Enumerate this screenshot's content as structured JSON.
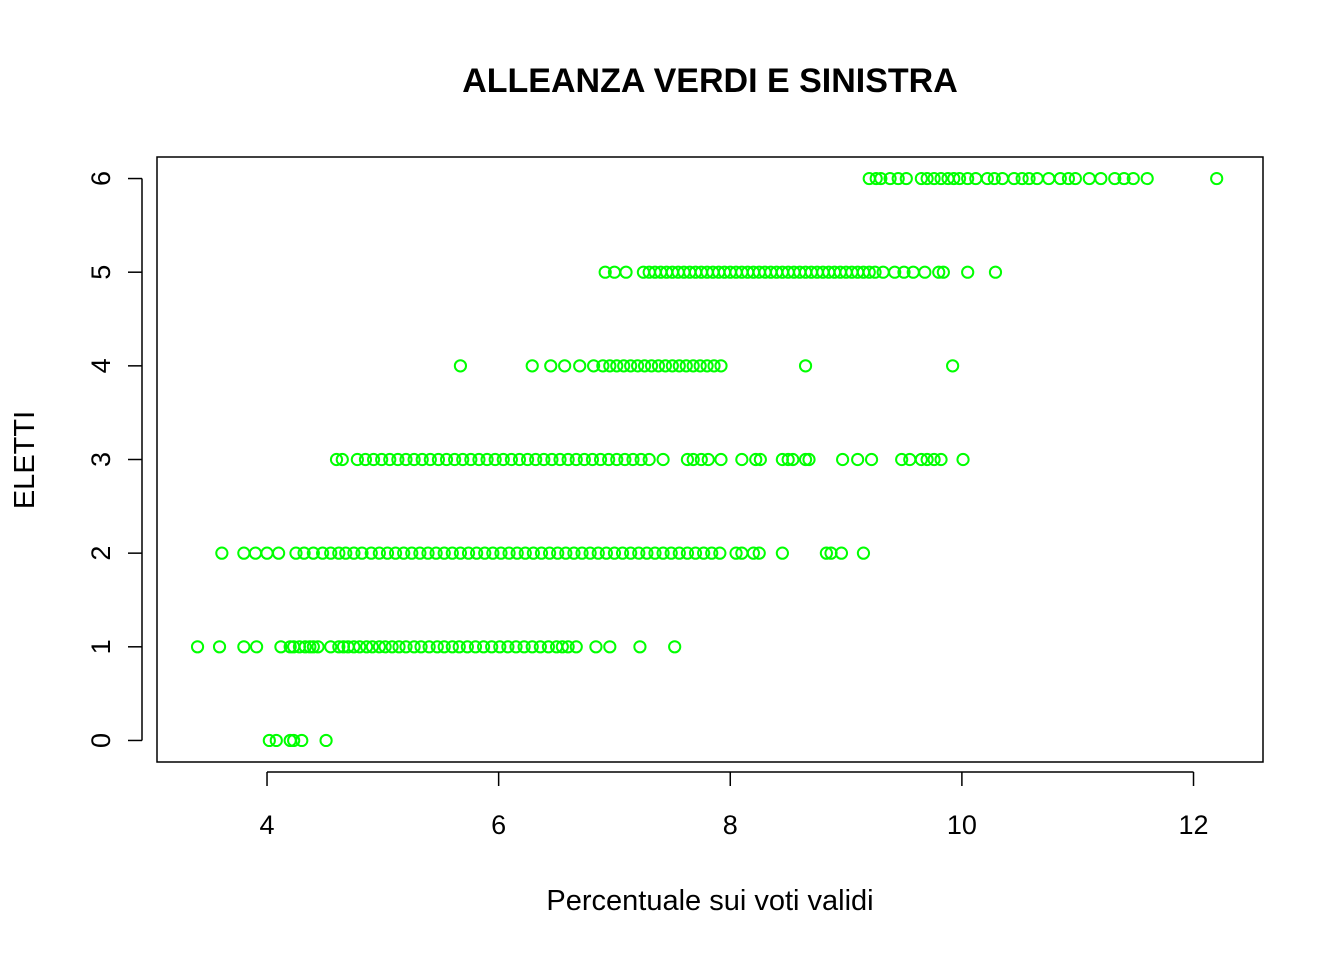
{
  "chart_data": {
    "type": "scatter",
    "title": "ALLEANZA VERDI E SINISTRA",
    "xlabel": "Percentuale sui voti validi",
    "ylabel": "ELETTI",
    "xlim": [
      3.05,
      12.6
    ],
    "ylim": [
      -0.23,
      6.23
    ],
    "x_ticks": [
      4,
      6,
      8,
      10,
      12
    ],
    "y_ticks": [
      0,
      1,
      2,
      3,
      4,
      5,
      6
    ],
    "x_tick_labels": [
      "4",
      "6",
      "8",
      "10",
      "12"
    ],
    "y_tick_labels": [
      "0",
      "1",
      "2",
      "3",
      "4",
      "5",
      "6"
    ],
    "grid": false,
    "legend": "none",
    "marker": "open-circle",
    "point_color": "#00ff00",
    "series": [
      {
        "points": [
          [
            4.02,
            0
          ],
          [
            4.08,
            0
          ],
          [
            4.2,
            0
          ],
          [
            4.23,
            0
          ],
          [
            4.3,
            0
          ],
          [
            4.51,
            0
          ],
          [
            3.4,
            1
          ],
          [
            3.59,
            1
          ],
          [
            3.8,
            1
          ],
          [
            3.91,
            1
          ],
          [
            4.12,
            1
          ],
          [
            4.2,
            1
          ],
          [
            4.23,
            1
          ],
          [
            4.28,
            1
          ],
          [
            4.33,
            1
          ],
          [
            4.37,
            1
          ],
          [
            4.4,
            1
          ],
          [
            4.44,
            1
          ],
          [
            4.55,
            1
          ],
          [
            4.62,
            1
          ],
          [
            4.66,
            1
          ],
          [
            4.7,
            1
          ],
          [
            4.75,
            1
          ],
          [
            4.8,
            1
          ],
          [
            4.86,
            1
          ],
          [
            4.91,
            1
          ],
          [
            4.97,
            1
          ],
          [
            5.02,
            1
          ],
          [
            5.08,
            1
          ],
          [
            5.14,
            1
          ],
          [
            5.2,
            1
          ],
          [
            5.27,
            1
          ],
          [
            5.33,
            1
          ],
          [
            5.4,
            1
          ],
          [
            5.47,
            1
          ],
          [
            5.53,
            1
          ],
          [
            5.6,
            1
          ],
          [
            5.66,
            1
          ],
          [
            5.73,
            1
          ],
          [
            5.8,
            1
          ],
          [
            5.87,
            1
          ],
          [
            5.94,
            1
          ],
          [
            6.01,
            1
          ],
          [
            6.08,
            1
          ],
          [
            6.15,
            1
          ],
          [
            6.22,
            1
          ],
          [
            6.29,
            1
          ],
          [
            6.36,
            1
          ],
          [
            6.43,
            1
          ],
          [
            6.5,
            1
          ],
          [
            6.55,
            1
          ],
          [
            6.6,
            1
          ],
          [
            6.67,
            1
          ],
          [
            6.84,
            1
          ],
          [
            6.96,
            1
          ],
          [
            7.22,
            1
          ],
          [
            7.52,
            1
          ],
          [
            3.61,
            2
          ],
          [
            3.8,
            2
          ],
          [
            3.9,
            2
          ],
          [
            4.0,
            2
          ],
          [
            4.1,
            2
          ],
          [
            4.25,
            2
          ],
          [
            4.32,
            2
          ],
          [
            4.4,
            2
          ],
          [
            4.48,
            2
          ],
          [
            4.55,
            2
          ],
          [
            4.62,
            2
          ],
          [
            4.68,
            2
          ],
          [
            4.75,
            2
          ],
          [
            4.82,
            2
          ],
          [
            4.9,
            2
          ],
          [
            4.97,
            2
          ],
          [
            5.04,
            2
          ],
          [
            5.11,
            2
          ],
          [
            5.18,
            2
          ],
          [
            5.25,
            2
          ],
          [
            5.32,
            2
          ],
          [
            5.39,
            2
          ],
          [
            5.46,
            2
          ],
          [
            5.53,
            2
          ],
          [
            5.6,
            2
          ],
          [
            5.67,
            2
          ],
          [
            5.74,
            2
          ],
          [
            5.81,
            2
          ],
          [
            5.88,
            2
          ],
          [
            5.95,
            2
          ],
          [
            6.02,
            2
          ],
          [
            6.09,
            2
          ],
          [
            6.16,
            2
          ],
          [
            6.23,
            2
          ],
          [
            6.3,
            2
          ],
          [
            6.37,
            2
          ],
          [
            6.44,
            2
          ],
          [
            6.51,
            2
          ],
          [
            6.58,
            2
          ],
          [
            6.65,
            2
          ],
          [
            6.72,
            2
          ],
          [
            6.79,
            2
          ],
          [
            6.86,
            2
          ],
          [
            6.93,
            2
          ],
          [
            7.0,
            2
          ],
          [
            7.07,
            2
          ],
          [
            7.14,
            2
          ],
          [
            7.21,
            2
          ],
          [
            7.28,
            2
          ],
          [
            7.35,
            2
          ],
          [
            7.42,
            2
          ],
          [
            7.49,
            2
          ],
          [
            7.56,
            2
          ],
          [
            7.63,
            2
          ],
          [
            7.7,
            2
          ],
          [
            7.77,
            2
          ],
          [
            7.84,
            2
          ],
          [
            7.91,
            2
          ],
          [
            8.05,
            2
          ],
          [
            8.1,
            2
          ],
          [
            8.2,
            2
          ],
          [
            8.25,
            2
          ],
          [
            8.45,
            2
          ],
          [
            8.83,
            2
          ],
          [
            8.87,
            2
          ],
          [
            8.96,
            2
          ],
          [
            9.15,
            2
          ],
          [
            4.6,
            3
          ],
          [
            4.65,
            3
          ],
          [
            4.78,
            3
          ],
          [
            4.85,
            3
          ],
          [
            4.92,
            3
          ],
          [
            4.99,
            3
          ],
          [
            5.06,
            3
          ],
          [
            5.13,
            3
          ],
          [
            5.2,
            3
          ],
          [
            5.27,
            3
          ],
          [
            5.34,
            3
          ],
          [
            5.41,
            3
          ],
          [
            5.48,
            3
          ],
          [
            5.55,
            3
          ],
          [
            5.62,
            3
          ],
          [
            5.69,
            3
          ],
          [
            5.76,
            3
          ],
          [
            5.83,
            3
          ],
          [
            5.9,
            3
          ],
          [
            5.97,
            3
          ],
          [
            6.04,
            3
          ],
          [
            6.11,
            3
          ],
          [
            6.18,
            3
          ],
          [
            6.25,
            3
          ],
          [
            6.32,
            3
          ],
          [
            6.39,
            3
          ],
          [
            6.46,
            3
          ],
          [
            6.53,
            3
          ],
          [
            6.6,
            3
          ],
          [
            6.67,
            3
          ],
          [
            6.74,
            3
          ],
          [
            6.81,
            3
          ],
          [
            6.88,
            3
          ],
          [
            6.95,
            3
          ],
          [
            7.02,
            3
          ],
          [
            7.09,
            3
          ],
          [
            7.16,
            3
          ],
          [
            7.23,
            3
          ],
          [
            7.3,
            3
          ],
          [
            7.42,
            3
          ],
          [
            7.63,
            3
          ],
          [
            7.68,
            3
          ],
          [
            7.75,
            3
          ],
          [
            7.81,
            3
          ],
          [
            7.92,
            3
          ],
          [
            8.1,
            3
          ],
          [
            8.22,
            3
          ],
          [
            8.26,
            3
          ],
          [
            8.45,
            3
          ],
          [
            8.5,
            3
          ],
          [
            8.54,
            3
          ],
          [
            8.65,
            3
          ],
          [
            8.68,
            3
          ],
          [
            8.97,
            3
          ],
          [
            9.1,
            3
          ],
          [
            9.22,
            3
          ],
          [
            9.48,
            3
          ],
          [
            9.55,
            3
          ],
          [
            9.65,
            3
          ],
          [
            9.7,
            3
          ],
          [
            9.76,
            3
          ],
          [
            9.82,
            3
          ],
          [
            10.01,
            3
          ],
          [
            5.67,
            4
          ],
          [
            6.29,
            4
          ],
          [
            6.45,
            4
          ],
          [
            6.57,
            4
          ],
          [
            6.7,
            4
          ],
          [
            6.82,
            4
          ],
          [
            6.9,
            4
          ],
          [
            6.96,
            4
          ],
          [
            7.02,
            4
          ],
          [
            7.08,
            4
          ],
          [
            7.14,
            4
          ],
          [
            7.2,
            4
          ],
          [
            7.26,
            4
          ],
          [
            7.32,
            4
          ],
          [
            7.38,
            4
          ],
          [
            7.44,
            4
          ],
          [
            7.5,
            4
          ],
          [
            7.56,
            4
          ],
          [
            7.62,
            4
          ],
          [
            7.68,
            4
          ],
          [
            7.74,
            4
          ],
          [
            7.8,
            4
          ],
          [
            7.86,
            4
          ],
          [
            7.92,
            4
          ],
          [
            8.65,
            4
          ],
          [
            9.92,
            4
          ],
          [
            6.92,
            5
          ],
          [
            7.0,
            5
          ],
          [
            7.1,
            5
          ],
          [
            7.25,
            5
          ],
          [
            7.3,
            5
          ],
          [
            7.35,
            5
          ],
          [
            7.4,
            5
          ],
          [
            7.45,
            5
          ],
          [
            7.5,
            5
          ],
          [
            7.55,
            5
          ],
          [
            7.6,
            5
          ],
          [
            7.65,
            5
          ],
          [
            7.7,
            5
          ],
          [
            7.75,
            5
          ],
          [
            7.8,
            5
          ],
          [
            7.85,
            5
          ],
          [
            7.9,
            5
          ],
          [
            7.95,
            5
          ],
          [
            8.0,
            5
          ],
          [
            8.05,
            5
          ],
          [
            8.1,
            5
          ],
          [
            8.15,
            5
          ],
          [
            8.2,
            5
          ],
          [
            8.25,
            5
          ],
          [
            8.3,
            5
          ],
          [
            8.35,
            5
          ],
          [
            8.4,
            5
          ],
          [
            8.45,
            5
          ],
          [
            8.5,
            5
          ],
          [
            8.55,
            5
          ],
          [
            8.6,
            5
          ],
          [
            8.65,
            5
          ],
          [
            8.7,
            5
          ],
          [
            8.75,
            5
          ],
          [
            8.8,
            5
          ],
          [
            8.85,
            5
          ],
          [
            8.9,
            5
          ],
          [
            8.95,
            5
          ],
          [
            9.0,
            5
          ],
          [
            9.05,
            5
          ],
          [
            9.1,
            5
          ],
          [
            9.15,
            5
          ],
          [
            9.2,
            5
          ],
          [
            9.25,
            5
          ],
          [
            9.32,
            5
          ],
          [
            9.42,
            5
          ],
          [
            9.5,
            5
          ],
          [
            9.58,
            5
          ],
          [
            9.68,
            5
          ],
          [
            9.8,
            5
          ],
          [
            9.84,
            5
          ],
          [
            10.05,
            5
          ],
          [
            10.29,
            5
          ],
          [
            9.2,
            6
          ],
          [
            9.26,
            6
          ],
          [
            9.3,
            6
          ],
          [
            9.38,
            6
          ],
          [
            9.45,
            6
          ],
          [
            9.52,
            6
          ],
          [
            9.65,
            6
          ],
          [
            9.7,
            6
          ],
          [
            9.76,
            6
          ],
          [
            9.82,
            6
          ],
          [
            9.88,
            6
          ],
          [
            9.93,
            6
          ],
          [
            9.98,
            6
          ],
          [
            10.05,
            6
          ],
          [
            10.12,
            6
          ],
          [
            10.22,
            6
          ],
          [
            10.28,
            6
          ],
          [
            10.35,
            6
          ],
          [
            10.45,
            6
          ],
          [
            10.52,
            6
          ],
          [
            10.58,
            6
          ],
          [
            10.65,
            6
          ],
          [
            10.75,
            6
          ],
          [
            10.85,
            6
          ],
          [
            10.92,
            6
          ],
          [
            10.98,
            6
          ],
          [
            11.1,
            6
          ],
          [
            11.2,
            6
          ],
          [
            11.32,
            6
          ],
          [
            11.4,
            6
          ],
          [
            11.48,
            6
          ],
          [
            11.6,
            6
          ],
          [
            12.2,
            6
          ]
        ]
      }
    ]
  }
}
